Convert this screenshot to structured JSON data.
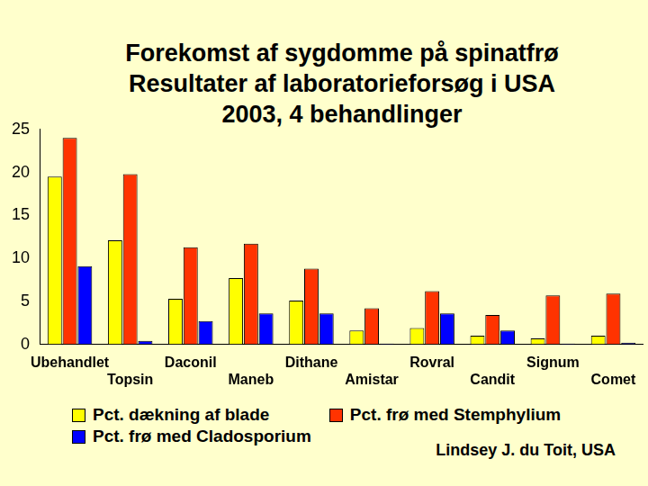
{
  "chart_data": {
    "type": "bar",
    "title": [
      "Forekomst af sygdomme på spinatfrø",
      "Resultater af laboratorieforsøg i USA",
      "2003, 4 behandlinger"
    ],
    "categories": [
      "Ubehandlet",
      "Topsin",
      "Daconil",
      "Maneb",
      "Dithane",
      "Amistar",
      "Rovral",
      "Candit",
      "Signum",
      "Comet"
    ],
    "series": [
      {
        "name": "Pct. dækning af blade",
        "color": "#FFFF00",
        "values": [
          19.5,
          12.1,
          5.3,
          7.7,
          5.1,
          1.6,
          1.9,
          1.0,
          0.7,
          1.0
        ]
      },
      {
        "name": "Pct. frø med Stemphylium",
        "color": "#FF3300",
        "values": [
          24.0,
          19.8,
          11.3,
          11.7,
          8.8,
          4.2,
          6.2,
          3.4,
          5.7,
          5.9
        ]
      },
      {
        "name": "Pct. frø med Cladosporium",
        "color": "#0000FF",
        "values": [
          9.1,
          0.4,
          2.7,
          3.6,
          3.6,
          0.1,
          3.6,
          1.6,
          0.1,
          0.2
        ]
      }
    ],
    "ylim": [
      0,
      25
    ],
    "yticks": [
      0,
      5,
      10,
      15,
      20,
      25
    ],
    "grid": false,
    "annotations": [
      "Lindsey J. du Toit, USA"
    ]
  }
}
